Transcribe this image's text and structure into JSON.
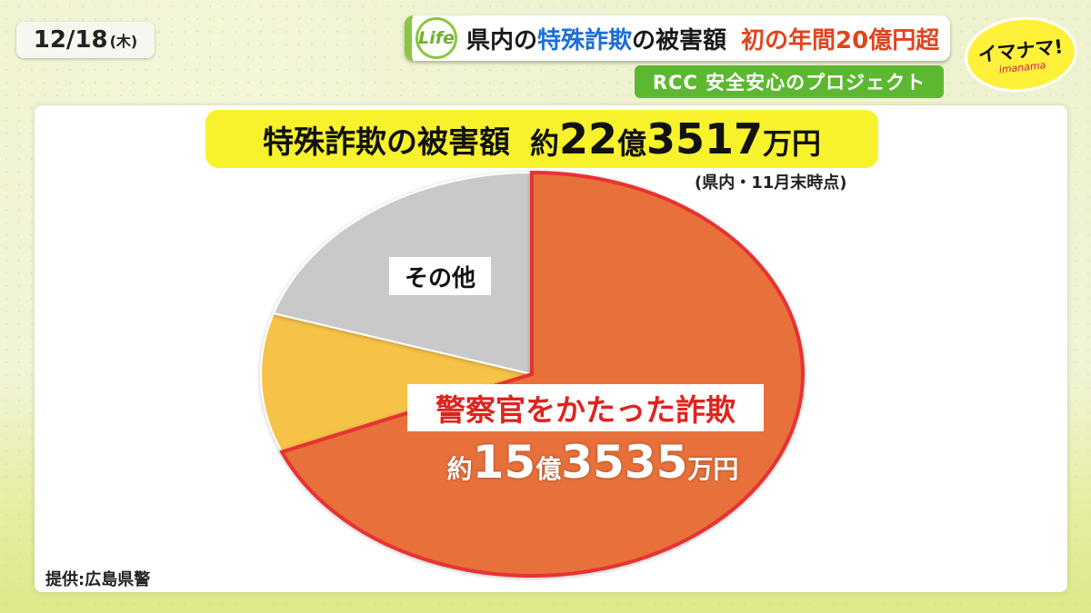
{
  "header": {
    "date": "12/18",
    "weekday": "(木)",
    "badge": "Life",
    "headline_a": "県内の",
    "headline_b": "特殊詐欺",
    "headline_c": "の被害額",
    "headline_d": "初の年間20億円超",
    "subtitle": "RCC 安全安心のプロジェクト",
    "logo_main": "イマナマ!",
    "logo_sub": "imanama"
  },
  "chart_data": {
    "type": "pie",
    "title_main": "特殊詐欺の被害額",
    "title_total_prefix": "約",
    "title_total_oku": "22",
    "title_total_oku_unit": "億",
    "title_total_man": "3517",
    "title_total_man_unit": "万円",
    "note": "(県内・11月末時点)",
    "source": "提供:広島県警",
    "slices": [
      {
        "label": "警察官をかたった詐欺",
        "amount_prefix": "約",
        "amount_oku": "15",
        "amount_oku_unit": "億",
        "amount_man": "3535",
        "amount_man_unit": "万円",
        "value": 15.3535,
        "color": "#e8703a",
        "highlight": true
      },
      {
        "label": "",
        "value": 2.5,
        "color": "#f6c247",
        "highlight": false
      },
      {
        "label": "その他",
        "value": 4.4982,
        "color": "#c9c9c9",
        "highlight": false
      }
    ]
  }
}
